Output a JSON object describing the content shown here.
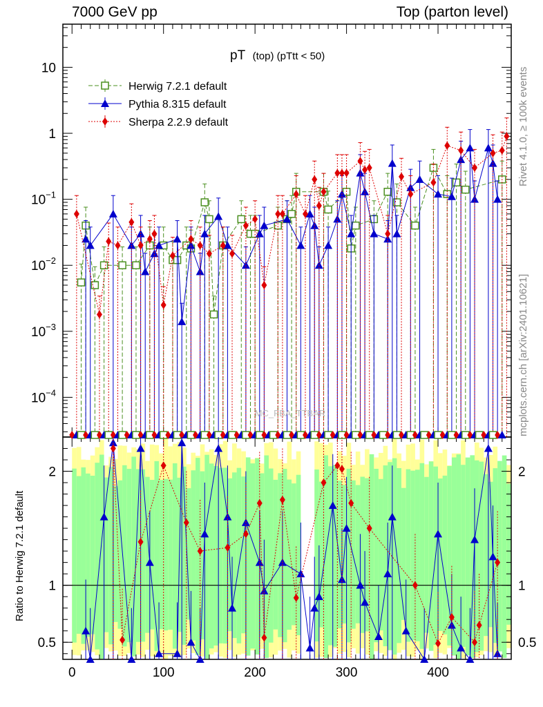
{
  "header": {
    "left": "7000 GeV pp",
    "right": "Top (parton level)"
  },
  "side_labels": {
    "rivet": "Rivet 4.1.0, ≥ 100k events",
    "mcplots": "mcplots.cern.ch [arXiv:2401.10621]"
  },
  "watermark": "MC_FBA_TTBAR",
  "colors": {
    "herwig": "#4a8f1f",
    "pythia": "#0000cc",
    "sherpa": "#dd0000",
    "band_inner": "#99ff99",
    "band_outer": "#ffff99"
  },
  "chart_data": [
    {
      "type": "scatter",
      "title": "pT (top) (pTtt < 50)",
      "title_main": "pT",
      "title_sub": "(top) (pTtt < 50)",
      "yscale": "log",
      "ylim": [
        2.5e-05,
        45
      ],
      "xlim": [
        -10,
        480
      ],
      "y_ticks": [
        {
          "value": 0.0001,
          "base": "10",
          "exp": "−4"
        },
        {
          "value": 0.001,
          "base": "10",
          "exp": "−3"
        },
        {
          "value": 0.01,
          "base": "10",
          "exp": "−2"
        },
        {
          "value": 0.1,
          "base": "10",
          "exp": "−1"
        },
        {
          "value": 1,
          "base": "1",
          "exp": ""
        },
        {
          "value": 10,
          "base": "10",
          "exp": ""
        }
      ],
      "legend_position": "top-left",
      "series": [
        {
          "name": "Herwig 7.2.1 default",
          "style": "open-square-dashed",
          "x": [
            10,
            15,
            25,
            35,
            55,
            70,
            85,
            100,
            110,
            115,
            125,
            130,
            145,
            150,
            155,
            165,
            185,
            195,
            200,
            225,
            235,
            240,
            245,
            275,
            280,
            300,
            305,
            310,
            330,
            345,
            355,
            375,
            395,
            410,
            420,
            430,
            470
          ],
          "y": [
            0.0055,
            0.04,
            0.005,
            0.01,
            0.01,
            0.01,
            0.02,
            0.02,
            0.012,
            0.012,
            0.02,
            0.018,
            0.09,
            0.05,
            0.0018,
            0.02,
            0.05,
            0.03,
            0.03,
            0.04,
            0.05,
            0.06,
            0.13,
            0.13,
            0.07,
            0.13,
            0.018,
            0.04,
            0.05,
            0.13,
            0.09,
            0.04,
            0.3,
            0.12,
            0.18,
            0.14,
            0.2
          ]
        },
        {
          "name": "Pythia 8.315 default",
          "style": "filled-triangle-solid",
          "x": [
            15,
            20,
            45,
            65,
            75,
            80,
            90,
            95,
            115,
            120,
            130,
            140,
            145,
            160,
            170,
            190,
            205,
            210,
            235,
            250,
            260,
            265,
            270,
            280,
            290,
            295,
            305,
            315,
            320,
            330,
            345,
            350,
            355,
            370,
            380,
            400,
            415,
            425,
            435,
            440,
            455,
            460,
            465
          ],
          "y": [
            0.025,
            0.02,
            0.06,
            0.02,
            0.03,
            0.008,
            0.015,
            0.02,
            0.025,
            0.0014,
            0.02,
            0.008,
            0.03,
            0.055,
            0.02,
            0.01,
            0.03,
            0.04,
            0.05,
            0.02,
            0.06,
            0.04,
            0.01,
            0.02,
            0.05,
            0.12,
            0.03,
            0.25,
            0.13,
            0.03,
            0.025,
            0.35,
            0.03,
            0.15,
            0.2,
            0.12,
            0.11,
            0.4,
            0.6,
            0.1,
            0.6,
            0.35,
            0.1
          ]
        },
        {
          "name": "Sherpa 2.2.9 default",
          "style": "filled-diamond-dotted",
          "x": [
            5,
            30,
            40,
            50,
            65,
            75,
            85,
            90,
            100,
            110,
            130,
            140,
            150,
            165,
            175,
            190,
            200,
            210,
            225,
            230,
            245,
            255,
            265,
            270,
            275,
            290,
            295,
            300,
            315,
            320,
            325,
            345,
            360,
            370,
            395,
            410,
            425,
            440,
            460,
            470,
            475
          ],
          "y": [
            0.06,
            0.0018,
            0.023,
            0.02,
            0.045,
            0.02,
            0.025,
            0.03,
            0.0025,
            0.014,
            0.025,
            0.02,
            0.015,
            0.02,
            0.015,
            0.04,
            0.05,
            0.005,
            0.06,
            0.06,
            0.12,
            0.06,
            0.2,
            0.08,
            0.13,
            0.25,
            0.25,
            0.25,
            0.38,
            0.28,
            0.3,
            0.03,
            0.22,
            0.12,
            0.18,
            0.65,
            0.55,
            0.3,
            0.5,
            0.55,
            0.9
          ]
        }
      ]
    },
    {
      "type": "scatter",
      "title": "Ratio to Herwig 7.2.1 default",
      "ylabel": "Ratio to Herwig 7.2.1 default",
      "xlabel": "",
      "ylim": [
        0.35,
        2.3
      ],
      "xlim": [
        -10,
        480
      ],
      "x_ticks": [
        0,
        100,
        200,
        300,
        400
      ],
      "y_ticks": [
        0.5,
        1,
        2
      ],
      "reference_line": 1,
      "series": [
        {
          "name": "Pythia 8.315 default",
          "x": [
            15,
            20,
            35,
            45,
            65,
            75,
            85,
            95,
            115,
            120,
            130,
            140,
            145,
            160,
            170,
            175,
            190,
            205,
            210,
            230,
            250,
            260,
            265,
            270,
            285,
            295,
            300,
            315,
            320,
            335,
            345,
            350,
            365,
            385,
            400,
            415,
            425,
            435,
            440,
            455,
            460,
            465
          ],
          "y": [
            0.6,
            0.35,
            1.6,
            2.25,
            0.35,
            2.2,
            1.2,
            0.4,
            0.4,
            2.25,
            0.5,
            0.35,
            1.45,
            2.2,
            1.6,
            0.8,
            1.55,
            1.2,
            0.95,
            1.2,
            1.1,
            0.45,
            0.8,
            0.9,
            1.7,
            1.05,
            1.5,
            1.0,
            0.85,
            0.55,
            1.1,
            1.6,
            0.6,
            0.35,
            1.45,
            0.65,
            0.45,
            0.35,
            1.4,
            2.2,
            1.25,
            0.4
          ]
        },
        {
          "name": "Sherpa 2.2.9 default",
          "x": [
            45,
            55,
            75,
            100,
            125,
            140,
            170,
            190,
            205,
            210,
            230,
            245,
            275,
            290,
            295,
            305,
            325,
            375,
            400,
            415,
            440,
            445,
            465
          ],
          "y": [
            2.2,
            0.52,
            1.38,
            2.05,
            1.55,
            1.3,
            1.33,
            1.45,
            1.72,
            0.54,
            1.75,
            0.89,
            1.9,
            2.05,
            2.02,
            1.72,
            1.5,
            1.0,
            0.49,
            0.72,
            0.5,
            0.65,
            1.2
          ]
        }
      ]
    }
  ]
}
